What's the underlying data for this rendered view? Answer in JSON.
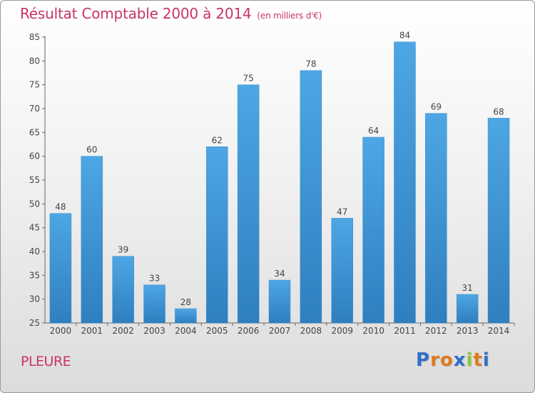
{
  "chart_data": {
    "type": "bar",
    "title": "Résultat Comptable 2000 à 2014",
    "unit_label": "(en milliers d'€)",
    "categories": [
      "2000",
      "2001",
      "2002",
      "2003",
      "2004",
      "2005",
      "2006",
      "2007",
      "2008",
      "2009",
      "2010",
      "2011",
      "2012",
      "2013",
      "2014"
    ],
    "values": [
      48,
      60,
      39,
      33,
      28,
      62,
      75,
      34,
      78,
      47,
      64,
      84,
      69,
      31,
      68
    ],
    "ylim": [
      25,
      85
    ],
    "yticks": [
      25,
      30,
      35,
      40,
      45,
      50,
      55,
      60,
      65,
      70,
      75,
      80,
      85
    ],
    "grid": false,
    "bar_color": "#4ea6e4",
    "bar_color_dark": "#2f7fbf",
    "xlabel": "",
    "ylabel": ""
  },
  "footer": {
    "commune": "PLEURE",
    "logo_letters": [
      "P",
      "r",
      "o",
      "x",
      "i",
      "t",
      "i"
    ],
    "logo_colors": [
      "#2f6fc9",
      "#e07a1e",
      "#e07a1e",
      "#2f6fc9",
      "#8cc63e",
      "#e07a1e",
      "#2f6fc9"
    ]
  }
}
